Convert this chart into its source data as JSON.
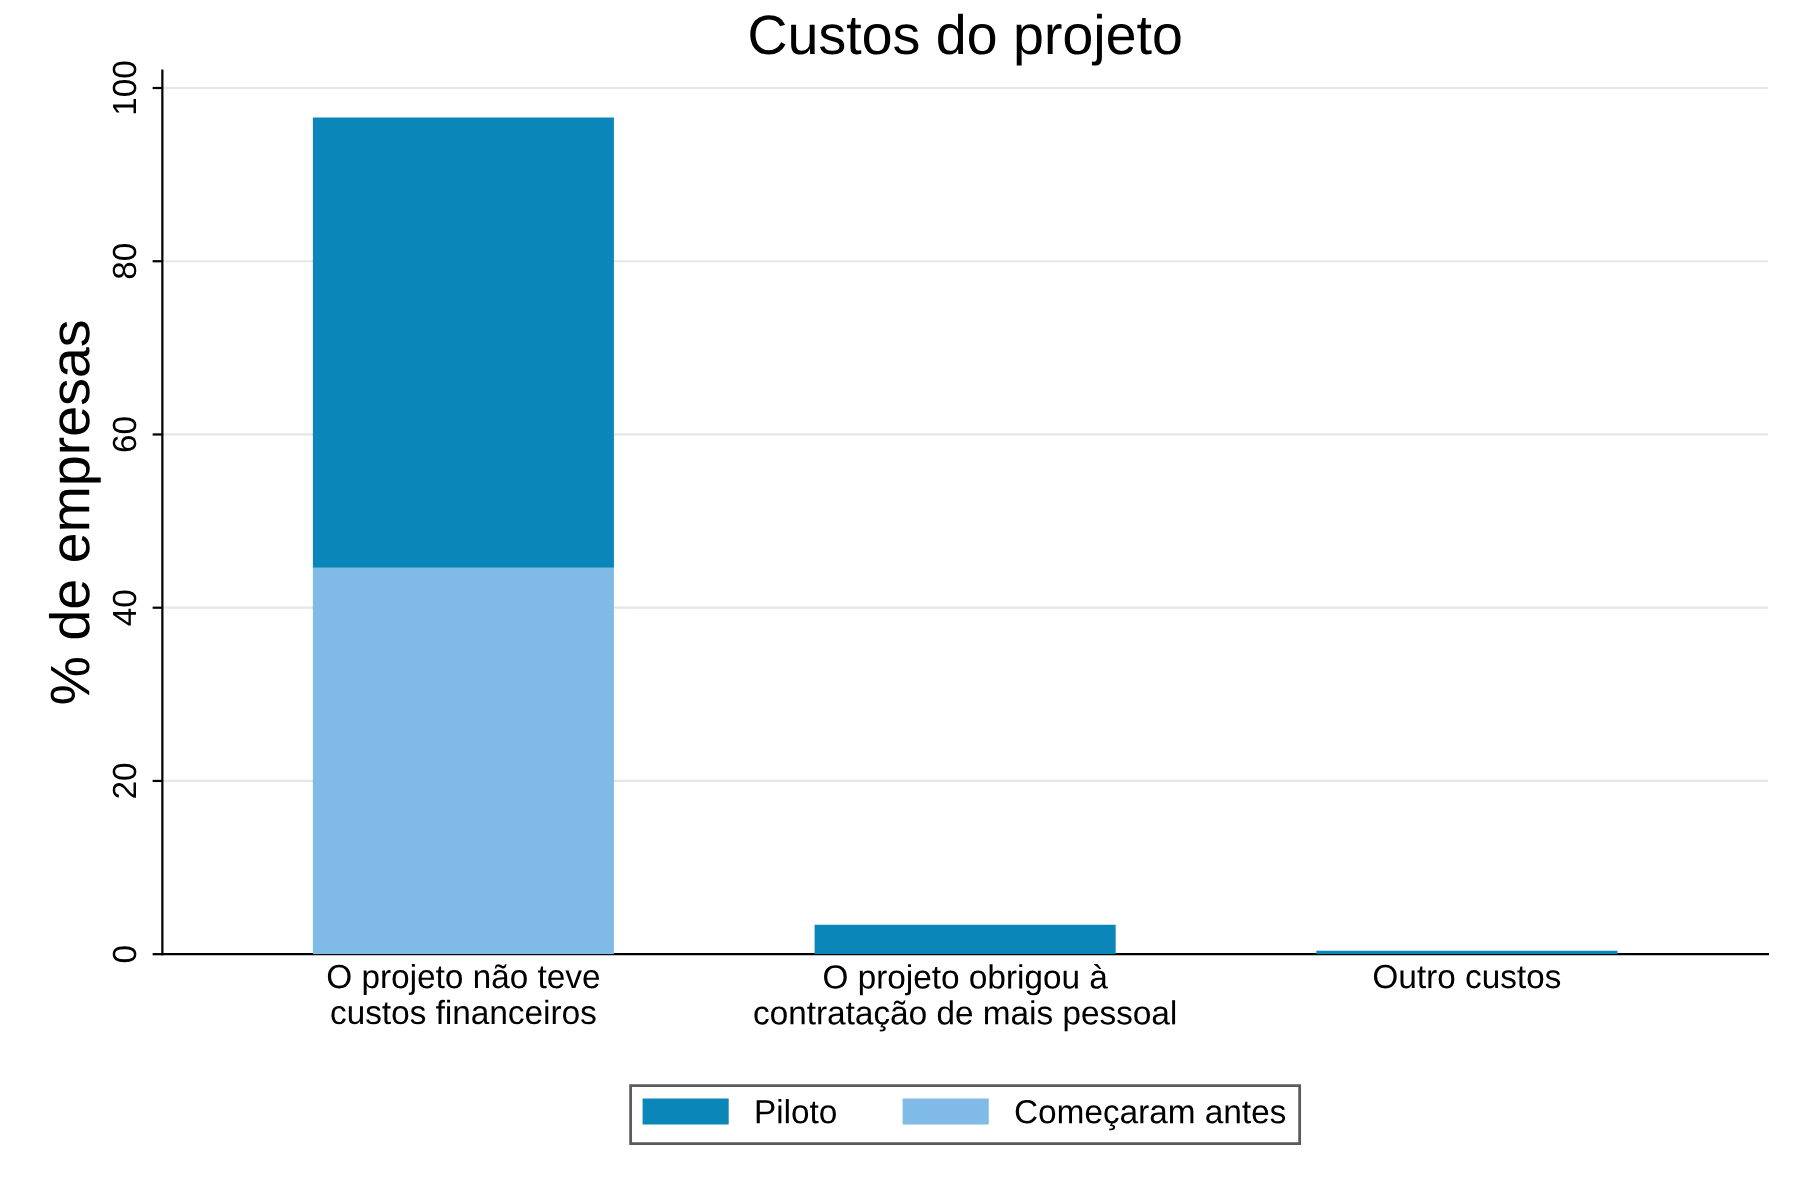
{
  "chart_data": {
    "type": "bar",
    "title": "Custos do projeto",
    "ylabel": "% de empresas",
    "categories": [
      "O projeto não teve\ncustos financeiros",
      "O projeto obrigou à\ncontratação de mais pessoal",
      "Outro custos"
    ],
    "stacked": true,
    "series": [
      {
        "name": "Começaram antes",
        "color": "#7fbbe6",
        "values": [
          44.6,
          0,
          0
        ]
      },
      {
        "name": "Piloto",
        "color": "#0a86b8",
        "values": [
          52.0,
          3.4,
          0.4
        ]
      }
    ],
    "ylim": [
      0,
      102
    ],
    "yticks": [
      0,
      20,
      40,
      60,
      80,
      100
    ],
    "grid": "y",
    "legend": "bottom"
  }
}
